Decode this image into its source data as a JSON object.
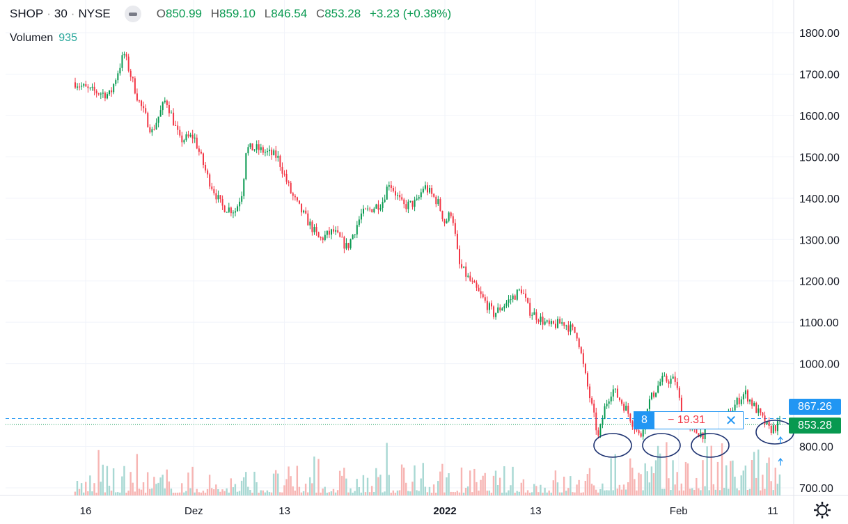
{
  "header": {
    "symbol": "SHOP",
    "interval": "30",
    "exchange": "NYSE",
    "ohlc": {
      "o_label": "O",
      "o": "850.99",
      "h_label": "H",
      "h": "859.10",
      "l_label": "L",
      "l": "846.54",
      "c_label": "C",
      "c": "853.28",
      "change": "+3.23 (+0.38%)"
    },
    "volume_label": "Volumen",
    "volume_value": "935"
  },
  "colors": {
    "up": "#26a69a",
    "down": "#ef5350",
    "up_body": "#089950",
    "down_body": "#f23645",
    "accent": "#2196f3",
    "ellipse": "#1c3170"
  },
  "price_labels": {
    "measure": "867.26",
    "last": "853.28"
  },
  "measure_tooltip": {
    "bars": "8",
    "delta": "− 19.31",
    "close_icon": "✕"
  },
  "chart_data": {
    "type": "candlestick",
    "title": "SHOP · 30 · NYSE",
    "ylim": [
      700,
      1800
    ],
    "y_ticks": [
      "1800.00",
      "1700.00",
      "1600.00",
      "1500.00",
      "1400.00",
      "1300.00",
      "1200.00",
      "1100.00",
      "1000.00",
      "800.00",
      "700.00"
    ],
    "y_tick_values": [
      1800,
      1700,
      1600,
      1500,
      1400,
      1300,
      1200,
      1100,
      1000,
      800,
      700
    ],
    "x_ticks": [
      "16",
      "Dez",
      "13",
      "2022",
      "13",
      "Feb",
      "11"
    ],
    "x_tick_index": [
      1.5,
      17,
      30,
      53,
      66,
      86.5,
      100
    ],
    "close_path": {
      "index": [
        0,
        2,
        5,
        7,
        9,
        11,
        13,
        15,
        17,
        19,
        21,
        23,
        24,
        24.5,
        26,
        29,
        31,
        32,
        35,
        37,
        39,
        41,
        44,
        45,
        47,
        49,
        50,
        52,
        53,
        54,
        55,
        57,
        60,
        62,
        64,
        65,
        68,
        70,
        72,
        73,
        75,
        76,
        77,
        79,
        81,
        82,
        84,
        86,
        87,
        88,
        90,
        91,
        93,
        95,
        96,
        98,
        99.5,
        101
      ],
      "close": [
        1680,
        1660,
        1650,
        1750,
        1640,
        1560,
        1640,
        1540,
        1550,
        1450,
        1380,
        1370,
        1420,
        1520,
        1520,
        1500,
        1410,
        1380,
        1300,
        1320,
        1280,
        1360,
        1390,
        1440,
        1380,
        1390,
        1430,
        1390,
        1340,
        1370,
        1240,
        1190,
        1120,
        1150,
        1180,
        1130,
        1090,
        1100,
        1070,
        980,
        820,
        900,
        940,
        890,
        820,
        900,
        960,
        960,
        880,
        840,
        830,
        880,
        860,
        910,
        930,
        880,
        840,
        853
      ]
    },
    "volume_seed": 7,
    "annotations": [
      "ellipse",
      "ellipse",
      "ellipse",
      "ellipse",
      "arrow-up",
      "arrow-up"
    ]
  }
}
